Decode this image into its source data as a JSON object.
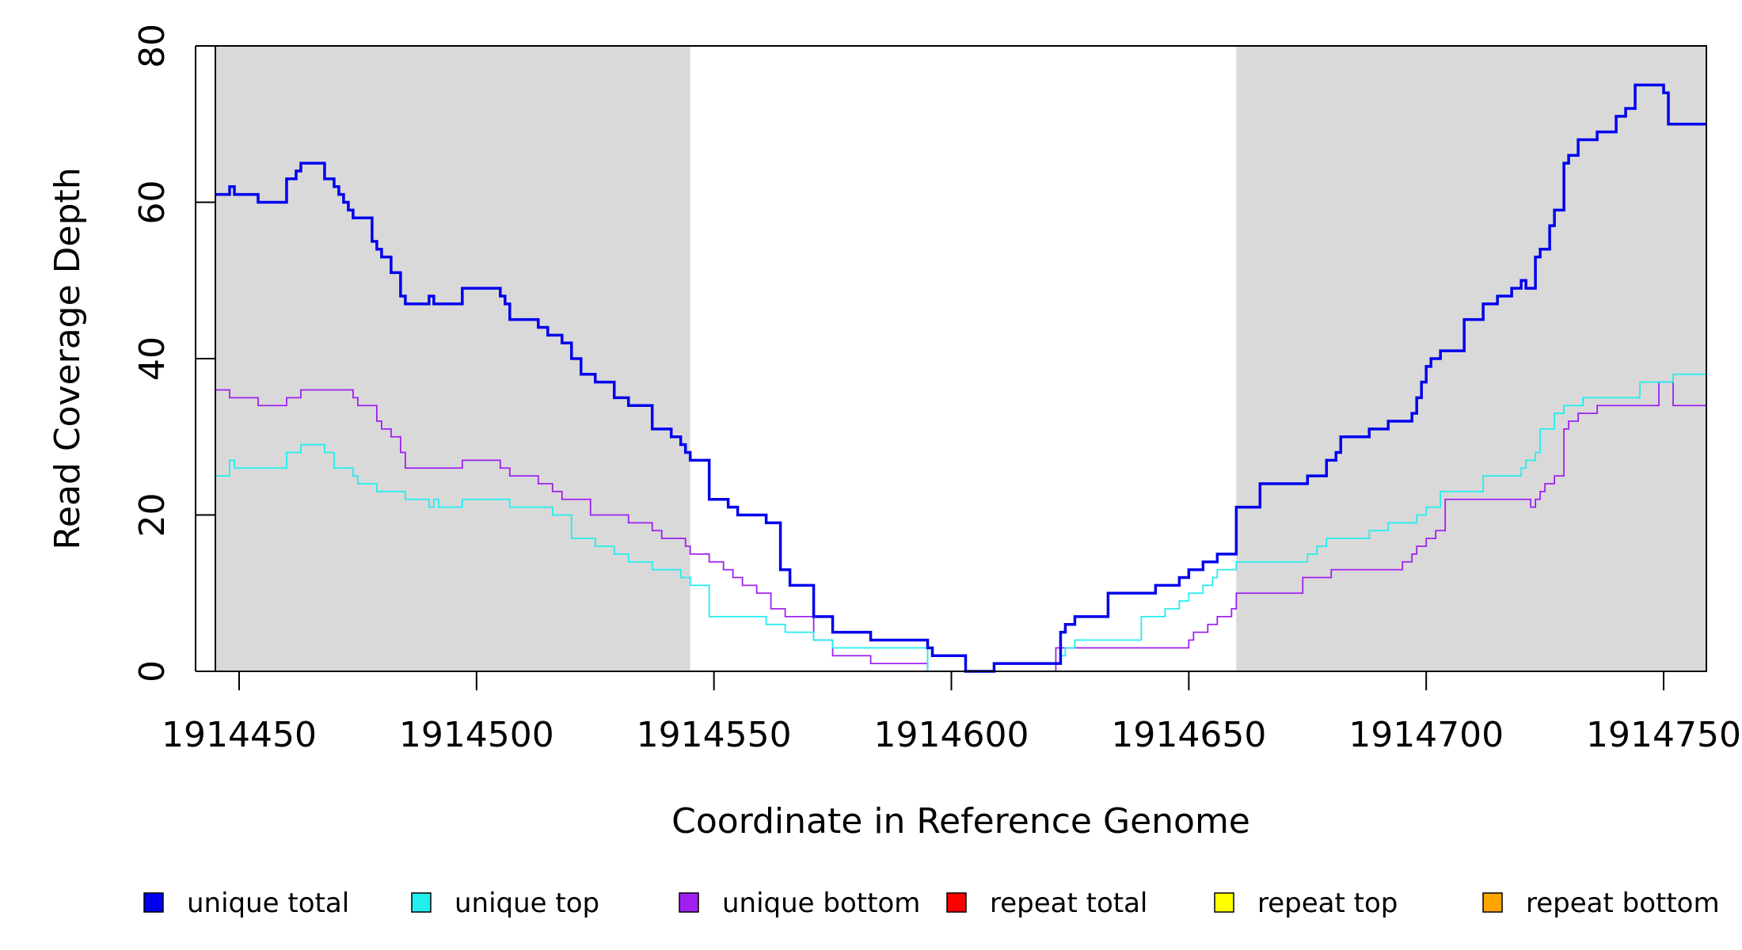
{
  "chart_data": {
    "type": "line",
    "xlabel": "Coordinate in Reference Genome",
    "ylabel": "Read Coverage Depth",
    "xlim": [
      1914445,
      1914759
    ],
    "ylim": [
      0,
      80
    ],
    "x_ticks": [
      1914450,
      1914500,
      1914550,
      1914600,
      1914650,
      1914700,
      1914750
    ],
    "y_ticks": [
      0,
      20,
      40,
      60,
      80
    ],
    "grid": false,
    "legend_position": "bottom",
    "shaded_regions": [
      {
        "x_start": 1914445,
        "x_end": 1914545,
        "color": "#d9d9d9"
      },
      {
        "x_start": 1914660,
        "x_end": 1914759,
        "color": "#d9d9d9"
      }
    ],
    "series": [
      {
        "name": "unique total",
        "color": "#0000ee",
        "step": true,
        "bold": true,
        "x": [
          1914445,
          1914448,
          1914449,
          1914454,
          1914460,
          1914462,
          1914463,
          1914464,
          1914468,
          1914470,
          1914471,
          1914472,
          1914473,
          1914474,
          1914475,
          1914478,
          1914479,
          1914480,
          1914482,
          1914484,
          1914485,
          1914490,
          1914491,
          1914492,
          1914497,
          1914505,
          1914506,
          1914507,
          1914513,
          1914515,
          1914516,
          1914518,
          1914519,
          1914520,
          1914522,
          1914525,
          1914529,
          1914530,
          1914532,
          1914537,
          1914539,
          1914541,
          1914543,
          1914544,
          1914545,
          1914549,
          1914553,
          1914555,
          1914561,
          1914564,
          1914566,
          1914571,
          1914575,
          1914583,
          1914595,
          1914596,
          1914603,
          1914609,
          1914622,
          1914623,
          1914624,
          1914626,
          1914627,
          1914633,
          1914637,
          1914643,
          1914645,
          1914648,
          1914650,
          1914653,
          1914656,
          1914660,
          1914665,
          1914675,
          1914679,
          1914681,
          1914682,
          1914688,
          1914692,
          1914697,
          1914698,
          1914699,
          1914700,
          1914701,
          1914703,
          1914708,
          1914712,
          1914715,
          1914718,
          1914720,
          1914721,
          1914723,
          1914724,
          1914726,
          1914727,
          1914729,
          1914730,
          1914732,
          1914736,
          1914740,
          1914742,
          1914744,
          1914748,
          1914750,
          1914751,
          1914752
        ],
        "values": [
          61,
          62,
          61,
          60,
          63,
          64,
          65,
          65,
          63,
          62,
          61,
          60,
          59,
          58,
          58,
          55,
          54,
          53,
          51,
          48,
          47,
          48,
          47,
          47,
          49,
          48,
          47,
          45,
          44,
          43,
          43,
          42,
          42,
          40,
          38,
          37,
          35,
          35,
          34,
          31,
          31,
          30,
          29,
          28,
          27,
          22,
          21,
          20,
          19,
          13,
          11,
          7,
          5,
          4,
          3,
          2,
          0,
          1,
          1,
          5,
          6,
          7,
          7,
          10,
          10,
          11,
          11,
          12,
          13,
          14,
          15,
          21,
          24,
          25,
          27,
          28,
          30,
          31,
          32,
          33,
          35,
          37,
          39,
          40,
          41,
          45,
          47,
          48,
          49,
          50,
          49,
          53,
          54,
          57,
          59,
          65,
          66,
          68,
          69,
          71,
          72,
          75,
          75,
          74,
          70,
          70
        ]
      },
      {
        "name": "unique top",
        "color": "#22eeee",
        "step": true,
        "bold": false,
        "x": [
          1914445,
          1914448,
          1914449,
          1914454,
          1914460,
          1914462,
          1914463,
          1914468,
          1914470,
          1914473,
          1914474,
          1914475,
          1914479,
          1914480,
          1914485,
          1914490,
          1914491,
          1914492,
          1914497,
          1914505,
          1914507,
          1914512,
          1914516,
          1914519,
          1914520,
          1914525,
          1914529,
          1914532,
          1914537,
          1914539,
          1914541,
          1914543,
          1914544,
          1914545,
          1914549,
          1914554,
          1914561,
          1914565,
          1914571,
          1914575,
          1914583,
          1914595,
          1914609,
          1914622,
          1914623,
          1914624,
          1914626,
          1914633,
          1914640,
          1914643,
          1914645,
          1914648,
          1914650,
          1914653,
          1914655,
          1914656,
          1914660,
          1914665,
          1914675,
          1914677,
          1914679,
          1914682,
          1914688,
          1914692,
          1914698,
          1914700,
          1914703,
          1914708,
          1914712,
          1914715,
          1914720,
          1914721,
          1914723,
          1914724,
          1914727,
          1914729,
          1914733,
          1914743,
          1914745,
          1914752
        ],
        "values": [
          25,
          27,
          26,
          26,
          28,
          28,
          29,
          28,
          26,
          26,
          25,
          24,
          23,
          23,
          22,
          21,
          22,
          21,
          22,
          22,
          21,
          21,
          20,
          20,
          17,
          16,
          15,
          14,
          13,
          13,
          13,
          12,
          12,
          11,
          7,
          7,
          6,
          5,
          4,
          3,
          3,
          0,
          1,
          1,
          2,
          3,
          4,
          4,
          7,
          7,
          8,
          9,
          10,
          11,
          12,
          13,
          14,
          14,
          15,
          16,
          17,
          17,
          18,
          19,
          20,
          21,
          23,
          23,
          25,
          25,
          26,
          27,
          28,
          31,
          33,
          34,
          35,
          35,
          37,
          38
        ]
      },
      {
        "name": "unique bottom",
        "color": "#a020f0",
        "step": true,
        "bold": false,
        "x": [
          1914445,
          1914448,
          1914454,
          1914460,
          1914463,
          1914466,
          1914474,
          1914475,
          1914479,
          1914480,
          1914482,
          1914484,
          1914485,
          1914497,
          1914505,
          1914507,
          1914513,
          1914515,
          1914516,
          1914518,
          1914519,
          1914524,
          1914530,
          1914532,
          1914537,
          1914539,
          1914544,
          1914545,
          1914549,
          1914552,
          1914554,
          1914556,
          1914559,
          1914562,
          1914565,
          1914571,
          1914575,
          1914583,
          1914595,
          1914609,
          1914622,
          1914625,
          1914638,
          1914645,
          1914650,
          1914651,
          1914654,
          1914656,
          1914659,
          1914660,
          1914674,
          1914680,
          1914692,
          1914695,
          1914697,
          1914698,
          1914700,
          1914702,
          1914704,
          1914712,
          1914718,
          1914722,
          1914723,
          1914724,
          1914725,
          1914727,
          1914729,
          1914730,
          1914732,
          1914736,
          1914741,
          1914749,
          1914752
        ],
        "values": [
          36,
          35,
          34,
          35,
          36,
          36,
          35,
          34,
          32,
          31,
          30,
          28,
          26,
          27,
          26,
          25,
          24,
          24,
          23,
          22,
          22,
          20,
          20,
          19,
          18,
          17,
          16,
          15,
          14,
          13,
          12,
          11,
          10,
          8,
          7,
          4,
          2,
          1,
          0,
          0,
          3,
          3,
          3,
          3,
          4,
          5,
          6,
          7,
          8,
          10,
          12,
          13,
          13,
          14,
          15,
          16,
          17,
          18,
          22,
          22,
          22,
          21,
          22,
          23,
          24,
          25,
          31,
          32,
          33,
          34,
          34,
          37,
          34
        ]
      },
      {
        "name": "repeat total",
        "color": "#ff0000",
        "step": true,
        "bold": false,
        "x": [
          1914445,
          1914759
        ],
        "values": [
          0,
          0
        ]
      },
      {
        "name": "repeat top",
        "color": "#ffff00",
        "step": true,
        "bold": false,
        "x": [
          1914445,
          1914759
        ],
        "values": [
          0,
          0
        ]
      },
      {
        "name": "repeat bottom",
        "color": "#ffa500",
        "step": true,
        "bold": false,
        "x": [
          1914445,
          1914759
        ],
        "values": [
          0,
          0
        ]
      }
    ]
  }
}
